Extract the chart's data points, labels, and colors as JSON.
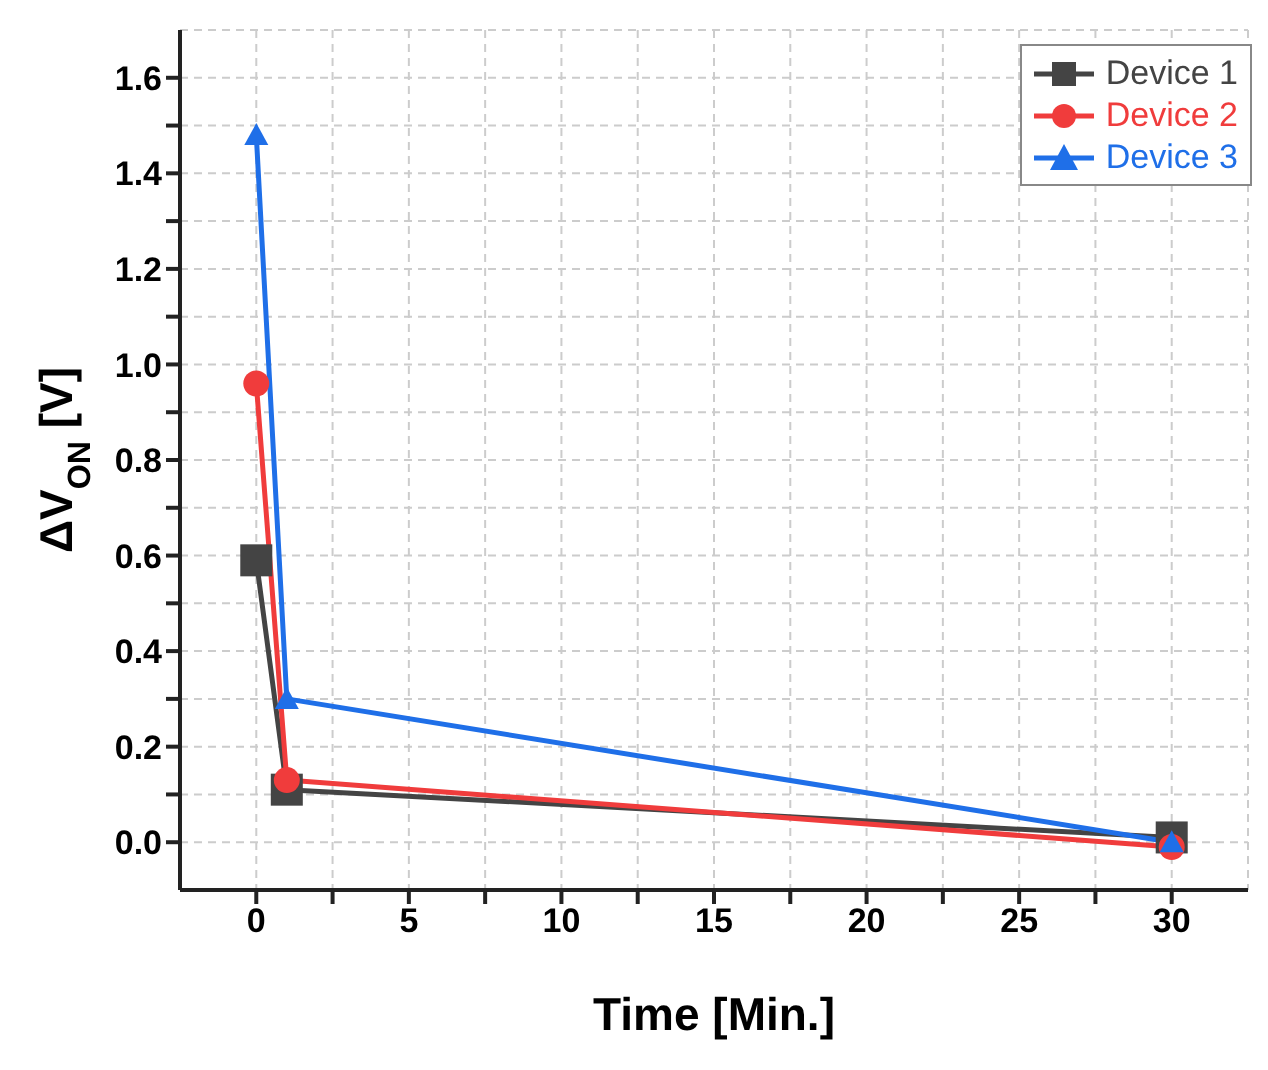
{
  "chart_data": {
    "type": "line",
    "xlabel": "Time [Min.]",
    "ylabel": "ΔV$_{ON}$ [V]",
    "x": [
      0,
      1,
      30
    ],
    "series": [
      {
        "name": "Device 1",
        "color": "#444444",
        "values": [
          0.59,
          0.11,
          0.01
        ],
        "marker": "square"
      },
      {
        "name": "Device 2",
        "color": "#f03c3c",
        "values": [
          0.96,
          0.13,
          -0.01
        ],
        "marker": "circle"
      },
      {
        "name": "Device 3",
        "color": "#1f6fe8",
        "values": [
          1.48,
          0.3,
          0.0
        ],
        "marker": "triangle"
      }
    ],
    "xlim": [
      -2.5,
      32.5
    ],
    "xticks": [
      0,
      {
        "value": 2.5,
        "label": null
      },
      5,
      {
        "value": 7.5,
        "label": null
      },
      10,
      {
        "value": 12.5,
        "label": null
      },
      15,
      {
        "value": 17.5,
        "label": null
      },
      20,
      {
        "value": 22.5,
        "label": null
      },
      25,
      {
        "value": 27.5,
        "label": null
      },
      30
    ],
    "ylim": [
      -0.1,
      1.7
    ],
    "yticks": [
      {
        "value": 0.0,
        "label": "0.0"
      },
      {
        "value": 0.1,
        "label": null
      },
      {
        "value": 0.2,
        "label": "0.2"
      },
      {
        "value": 0.3,
        "label": null
      },
      {
        "value": 0.4,
        "label": "0.4"
      },
      {
        "value": 0.5,
        "label": null
      },
      {
        "value": 0.6,
        "label": "0.6"
      },
      {
        "value": 0.7,
        "label": null
      },
      {
        "value": 0.8,
        "label": "0.8"
      },
      {
        "value": 0.9,
        "label": null
      },
      {
        "value": 1.0,
        "label": "1.0"
      },
      {
        "value": 1.1,
        "label": null
      },
      {
        "value": 1.2,
        "label": "1.2"
      },
      {
        "value": 1.3,
        "label": null
      },
      {
        "value": 1.4,
        "label": "1.4"
      },
      {
        "value": 1.5,
        "label": null
      },
      {
        "value": 1.6,
        "label": "1.6"
      }
    ],
    "grid": true,
    "legend": "top right",
    "line_style": "solid"
  }
}
